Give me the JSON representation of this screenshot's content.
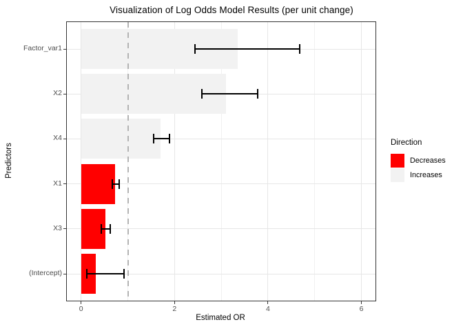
{
  "title": "Visualization of Log Odds Model Results (per unit change)",
  "axes": {
    "x_title": "Estimated OR",
    "y_title": "Predictors"
  },
  "legend": {
    "title": "Direction",
    "items": [
      {
        "label": "Decreases",
        "color": "#ff0000"
      },
      {
        "label": "Increases",
        "color": "#f2f2f2"
      }
    ]
  },
  "colors": {
    "decreases_fill": "#ff0000",
    "increases_fill": "#f2f2f2",
    "panel_border": "#333333",
    "major_grid": "#e6e6e6",
    "minor_grid": "#f1f1f1",
    "reference_line": "#b3b3b3",
    "tick_text": "#4d4d4d"
  },
  "chart_data": {
    "type": "bar",
    "orientation": "horizontal",
    "title": "Visualization of Log Odds Model Results (per unit change)",
    "xlabel": "Estimated OR",
    "ylabel": "Predictors",
    "xlim": [
      -0.3,
      6.3
    ],
    "x_major_ticks": [
      0,
      2,
      4,
      6
    ],
    "x_minor_gridlines": [
      1,
      3,
      5
    ],
    "reference_line_x": 1,
    "grid": true,
    "legend_position": "right",
    "categories_top_to_bottom": [
      "Factor_var1",
      "X2",
      "X4",
      "X1",
      "X3",
      "(Intercept)"
    ],
    "series": [
      {
        "name": "Estimated OR",
        "values": [
          3.35,
          3.1,
          1.7,
          0.72,
          0.52,
          0.31
        ]
      }
    ],
    "ci_low": [
      2.44,
      2.59,
      1.55,
      0.67,
      0.43,
      0.12
    ],
    "ci_high": [
      4.68,
      3.78,
      1.89,
      0.81,
      0.62,
      0.92
    ],
    "direction": [
      "Increases",
      "Increases",
      "Increases",
      "Decreases",
      "Decreases",
      "Decreases"
    ],
    "bar_fill_by_direction": {
      "Decreases": "#ff0000",
      "Increases": "#f2f2f2"
    }
  }
}
